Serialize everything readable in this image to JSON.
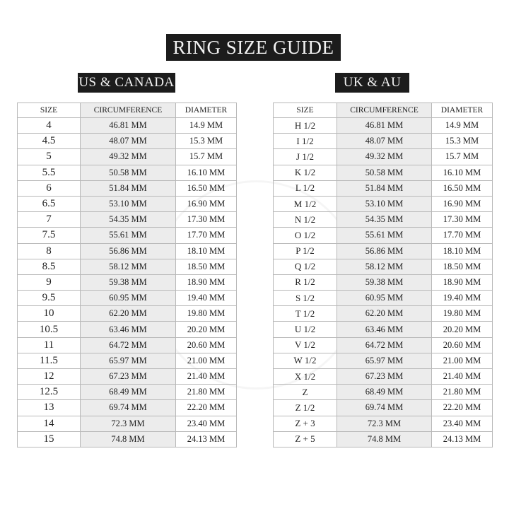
{
  "title": "RING SIZE GUIDE",
  "us": {
    "heading": "US & CANADA",
    "columns": [
      "SIZE",
      "CIRCUMFERENCE",
      "DIAMETER"
    ],
    "rows": [
      [
        "4",
        "46.81 MM",
        "14.9 MM"
      ],
      [
        "4.5",
        "48.07 MM",
        "15.3 MM"
      ],
      [
        "5",
        "49.32 MM",
        "15.7 MM"
      ],
      [
        "5.5",
        "50.58 MM",
        "16.10 MM"
      ],
      [
        "6",
        "51.84 MM",
        "16.50 MM"
      ],
      [
        "6.5",
        "53.10 MM",
        "16.90 MM"
      ],
      [
        "7",
        "54.35 MM",
        "17.30 MM"
      ],
      [
        "7.5",
        "55.61 MM",
        "17.70 MM"
      ],
      [
        "8",
        "56.86 MM",
        "18.10 MM"
      ],
      [
        "8.5",
        "58.12 MM",
        "18.50 MM"
      ],
      [
        "9",
        "59.38 MM",
        "18.90 MM"
      ],
      [
        "9.5",
        "60.95 MM",
        "19.40 MM"
      ],
      [
        "10",
        "62.20 MM",
        "19.80 MM"
      ],
      [
        "10.5",
        "63.46 MM",
        "20.20 MM"
      ],
      [
        "11",
        "64.72 MM",
        "20.60 MM"
      ],
      [
        "11.5",
        "65.97 MM",
        "21.00 MM"
      ],
      [
        "12",
        "67.23 MM",
        "21.40 MM"
      ],
      [
        "12.5",
        "68.49 MM",
        "21.80 MM"
      ],
      [
        "13",
        "69.74 MM",
        "22.20 MM"
      ],
      [
        "14",
        "72.3 MM",
        "23.40 MM"
      ],
      [
        "15",
        "74.8 MM",
        "24.13 MM"
      ]
    ]
  },
  "uk": {
    "heading": "UK & AU",
    "columns": [
      "SIZE",
      "CIRCUMFERENCE",
      "DIAMETER"
    ],
    "rows": [
      [
        "H 1/2",
        "46.81 MM",
        "14.9 MM"
      ],
      [
        "I 1/2",
        "48.07 MM",
        "15.3 MM"
      ],
      [
        "J 1/2",
        "49.32 MM",
        "15.7 MM"
      ],
      [
        "K 1/2",
        "50.58 MM",
        "16.10 MM"
      ],
      [
        "L 1/2",
        "51.84 MM",
        "16.50 MM"
      ],
      [
        "M 1/2",
        "53.10 MM",
        "16.90 MM"
      ],
      [
        "N 1/2",
        "54.35 MM",
        "17.30 MM"
      ],
      [
        "O 1/2",
        "55.61 MM",
        "17.70 MM"
      ],
      [
        "P 1/2",
        "56.86 MM",
        "18.10 MM"
      ],
      [
        "Q 1/2",
        "58.12 MM",
        "18.50 MM"
      ],
      [
        "R 1/2",
        "59.38 MM",
        "18.90 MM"
      ],
      [
        "S 1/2",
        "60.95 MM",
        "19.40 MM"
      ],
      [
        "T 1/2",
        "62.20 MM",
        "19.80 MM"
      ],
      [
        "U 1/2",
        "63.46 MM",
        "20.20 MM"
      ],
      [
        "V 1/2",
        "64.72 MM",
        "20.60 MM"
      ],
      [
        "W 1/2",
        "65.97 MM",
        "21.00 MM"
      ],
      [
        "X 1/2",
        "67.23 MM",
        "21.40 MM"
      ],
      [
        "Z",
        "68.49 MM",
        "21.80 MM"
      ],
      [
        "Z 1/2",
        "69.74 MM",
        "22.20 MM"
      ],
      [
        "Z + 3",
        "72.3 MM",
        "23.40 MM"
      ],
      [
        "Z + 5",
        "74.8 MM",
        "24.13 MM"
      ]
    ]
  }
}
